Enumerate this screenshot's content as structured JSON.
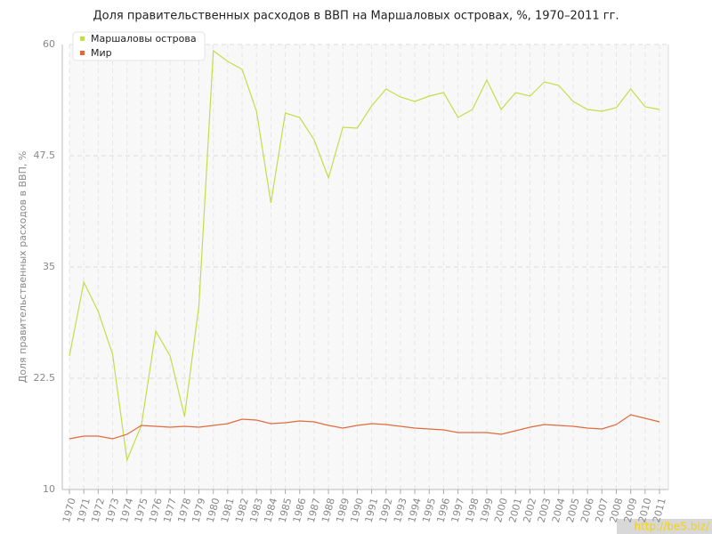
{
  "chart_data": {
    "type": "line",
    "title": "Доля правительственных расходов в ВВП на Маршаловых островах, %, 1970–2011 гг.",
    "y_label": "Доля правительственных расходов в ВВП, %",
    "watermark": "http://be5.biz/",
    "categories": [
      "1970",
      "1971",
      "1972",
      "1973",
      "1974",
      "1975",
      "1976",
      "1977",
      "1978",
      "1979",
      "1980",
      "1981",
      "1982",
      "1983",
      "1984",
      "1985",
      "1986",
      "1987",
      "1988",
      "1989",
      "1990",
      "1991",
      "1992",
      "1993",
      "1994",
      "1995",
      "1996",
      "1997",
      "1998",
      "1999",
      "2000",
      "2001",
      "2002",
      "2003",
      "2004",
      "2005",
      "2006",
      "2007",
      "2008",
      "2009",
      "2010",
      "2011"
    ],
    "series": [
      {
        "name": "Маршаловы острова",
        "color": "#c5dc4a",
        "values": [
          25,
          33.3,
          30,
          25.2,
          13.3,
          17.2,
          27.8,
          25,
          18.2,
          30.7,
          59.3,
          58.1,
          57.2,
          52.5,
          42.2,
          52.3,
          51.8,
          49.3,
          45,
          50.7,
          50.6,
          53.1,
          55,
          54.1,
          53.6,
          54.2,
          54.6,
          51.8,
          52.7,
          56,
          52.7,
          54.6,
          54.2,
          55.8,
          55.4,
          53.6,
          52.7,
          52.5,
          52.9,
          55,
          53,
          52.7
        ]
      },
      {
        "name": "Мир",
        "color": "#e06a3e",
        "values": [
          15.7,
          16,
          16,
          15.7,
          16.2,
          17.2,
          17.1,
          17,
          17.1,
          17,
          17.2,
          17.4,
          17.9,
          17.8,
          17.4,
          17.5,
          17.7,
          17.6,
          17.2,
          16.9,
          17.2,
          17.4,
          17.3,
          17.1,
          16.9,
          16.8,
          16.7,
          16.4,
          16.4,
          16.4,
          16.2,
          16.6,
          17,
          17.3,
          17.2,
          17.1,
          16.9,
          16.8,
          17.3,
          18.4,
          18,
          17.6
        ]
      }
    ],
    "ylim": [
      10,
      60
    ],
    "yticks": [
      10,
      22.5,
      35,
      47.5,
      60
    ],
    "grid": true,
    "legend": "top-left"
  }
}
